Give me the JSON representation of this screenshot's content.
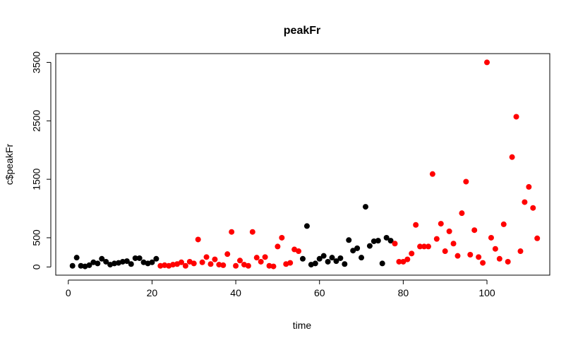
{
  "chart_data": {
    "type": "scatter",
    "title": "peakFr",
    "xlabel": "time",
    "ylabel": "c$peakFr",
    "xlim": [
      -3,
      115
    ],
    "ylim": [
      -140,
      3650
    ],
    "x_ticks": [
      0,
      20,
      40,
      60,
      80,
      100
    ],
    "y_ticks": [
      0,
      500,
      1500,
      2500,
      3500
    ],
    "grid": false,
    "legend": "none",
    "colors": {
      "black": "#000000",
      "red": "#ff0000"
    },
    "series": [
      {
        "color": "black",
        "x": [
          1,
          2,
          3,
          4,
          5,
          6,
          7,
          8,
          9,
          10,
          11,
          12,
          13,
          14,
          15,
          16,
          17,
          18,
          19,
          20,
          21,
          56,
          57,
          58,
          59,
          60,
          61,
          62,
          63,
          64,
          65,
          66,
          67,
          68,
          69,
          70,
          71,
          72,
          73,
          74,
          75,
          76,
          77
        ],
        "y": [
          20,
          160,
          20,
          10,
          30,
          80,
          60,
          140,
          90,
          40,
          60,
          70,
          90,
          100,
          50,
          150,
          150,
          80,
          60,
          80,
          140,
          140,
          700,
          40,
          60,
          140,
          190,
          90,
          160,
          100,
          150,
          50,
          460,
          280,
          320,
          160,
          1030,
          360,
          440,
          450,
          60,
          500,
          450
        ]
      },
      {
        "color": "red",
        "x": [
          22,
          23,
          24,
          25,
          26,
          27,
          28,
          29,
          30,
          31,
          32,
          33,
          34,
          35,
          36,
          37,
          38,
          39,
          40,
          41,
          42,
          43,
          44,
          45,
          46,
          47,
          48,
          49,
          50,
          51,
          52,
          53,
          54,
          55,
          78,
          79,
          80,
          81,
          82,
          83,
          84,
          85,
          86,
          87,
          88,
          89,
          90,
          91,
          92,
          93,
          94,
          95,
          96,
          97,
          98,
          99,
          100,
          101,
          102,
          103,
          104,
          105,
          106,
          107,
          108,
          109,
          110,
          111,
          112
        ],
        "y": [
          20,
          30,
          20,
          40,
          50,
          80,
          20,
          90,
          60,
          470,
          80,
          170,
          50,
          130,
          40,
          30,
          220,
          600,
          20,
          110,
          40,
          20,
          600,
          160,
          90,
          170,
          20,
          10,
          350,
          500,
          50,
          70,
          300,
          270,
          400,
          90,
          90,
          130,
          230,
          720,
          350,
          350,
          350,
          1590,
          480,
          740,
          270,
          610,
          400,
          190,
          920,
          1460,
          210,
          630,
          170,
          70,
          3500,
          500,
          310,
          140,
          730,
          90,
          1880,
          2570,
          270,
          1110,
          1370,
          1010,
          490
        ]
      }
    ]
  }
}
